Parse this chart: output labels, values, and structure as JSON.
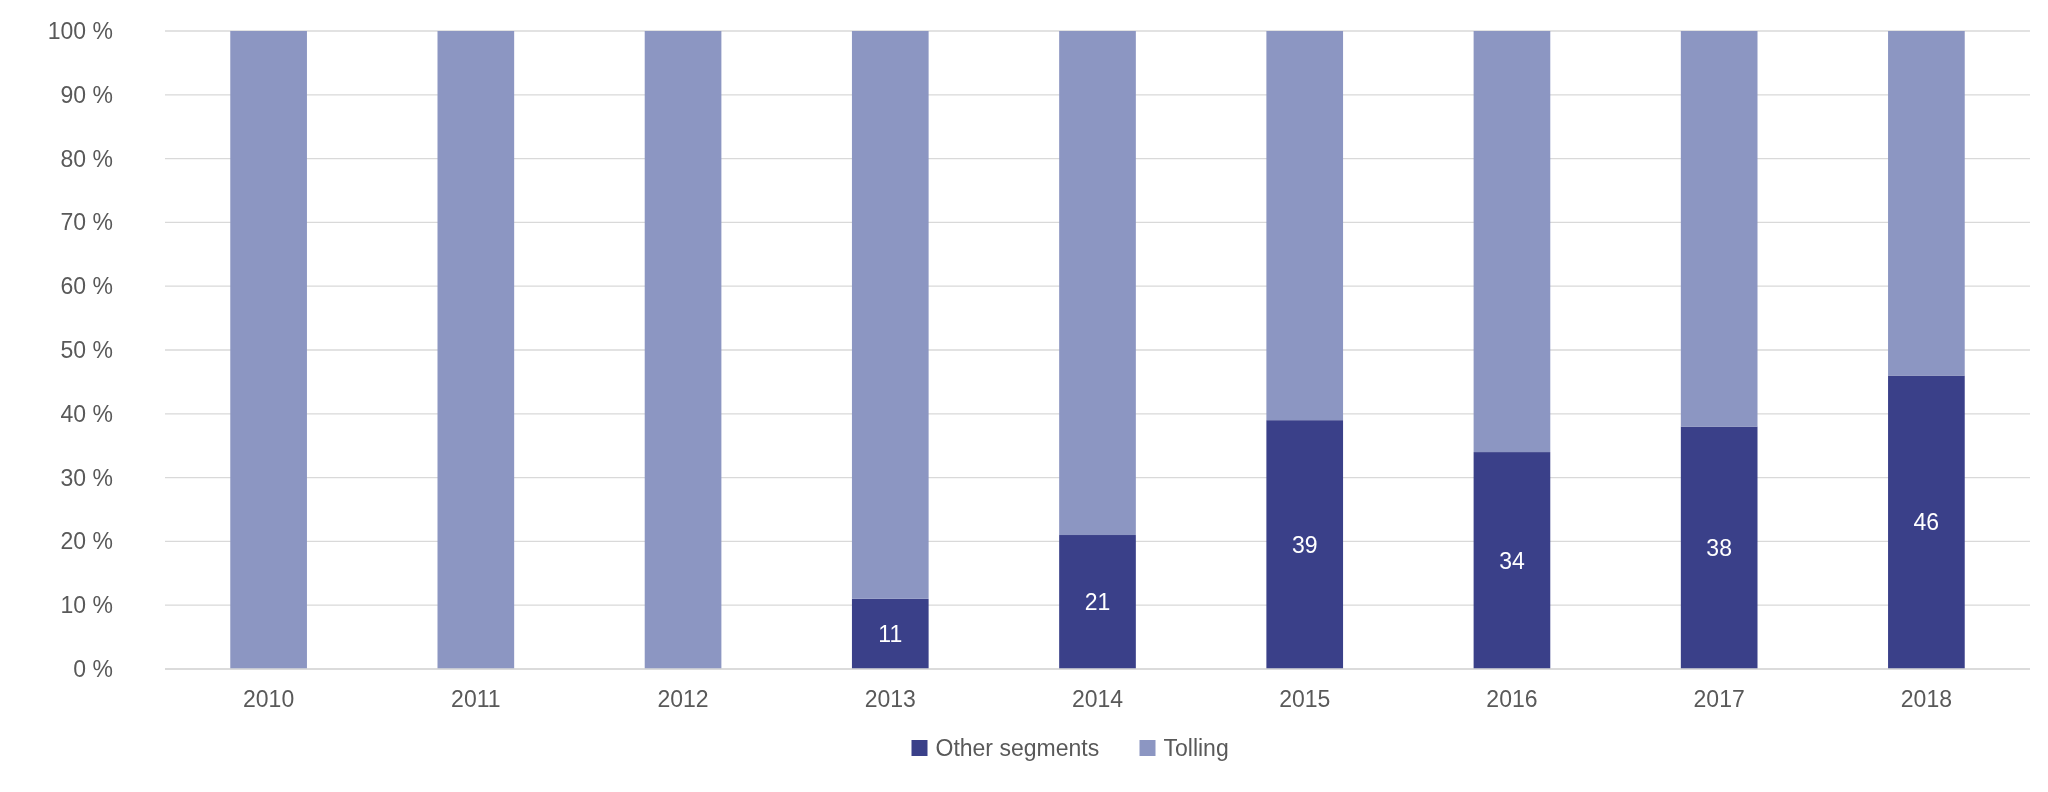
{
  "chart_data": {
    "type": "bar",
    "stacked": true,
    "categories": [
      "2010",
      "2011",
      "2012",
      "2013",
      "2014",
      "2015",
      "2016",
      "2017",
      "2018"
    ],
    "series": [
      {
        "name": "Other segments",
        "color": "#3a4089",
        "values": [
          0,
          0,
          0,
          11,
          21,
          39,
          34,
          38,
          46
        ],
        "value_labels": [
          null,
          null,
          null,
          "11",
          "21",
          "39",
          "34",
          "38",
          "46"
        ]
      },
      {
        "name": "Tolling",
        "color": "#8c96c2",
        "values": [
          100,
          100,
          100,
          89,
          79,
          61,
          66,
          62,
          54
        ]
      }
    ],
    "ylim": [
      0,
      100
    ],
    "yticks": [
      {
        "value": 0,
        "label": "0 %"
      },
      {
        "value": 10,
        "label": "10 %"
      },
      {
        "value": 20,
        "label": "20 %"
      },
      {
        "value": 30,
        "label": "30 %"
      },
      {
        "value": 40,
        "label": "40 %"
      },
      {
        "value": 50,
        "label": "50 %"
      },
      {
        "value": 60,
        "label": "60 %"
      },
      {
        "value": 70,
        "label": "70 %"
      },
      {
        "value": 80,
        "label": "80 %"
      },
      {
        "value": 90,
        "label": "90 %"
      },
      {
        "value": 100,
        "label": "100 %"
      }
    ],
    "grid": "y",
    "legend": "bottom"
  }
}
